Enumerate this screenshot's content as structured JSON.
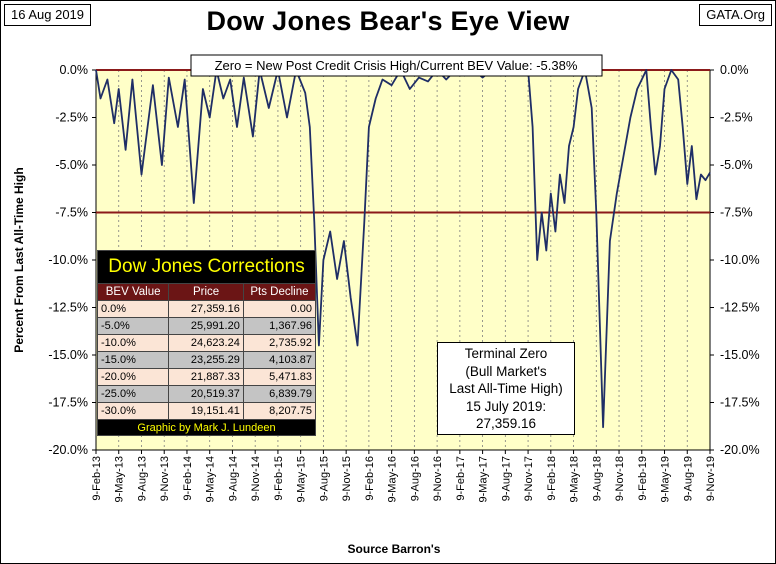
{
  "header": {
    "date": "16 Aug 2019",
    "site": "GATA.Org",
    "title": "Dow Jones Bear's Eye View"
  },
  "chart_data": {
    "type": "line",
    "title": "Dow Jones Bear's Eye View",
    "subtitle": "Zero = New Post Credit Crisis High/Current BEV Value:  -5.38%",
    "ylabel": "Percent From Last All-Time High",
    "xlabel": "Source Barron's",
    "ylim": [
      -20,
      0
    ],
    "yticks": [
      0,
      -2.5,
      -5,
      -7.5,
      -10,
      -12.5,
      -15,
      -17.5,
      -20
    ],
    "ytick_labels": [
      "0.0%",
      "-2.5%",
      "-5.0%",
      "-7.5%",
      "-10.0%",
      "-12.5%",
      "-15.0%",
      "-17.5%",
      "-20.0%"
    ],
    "xticks": [
      "9-Feb-13",
      "9-May-13",
      "9-Aug-13",
      "9-Nov-13",
      "9-Feb-14",
      "9-May-14",
      "9-Aug-14",
      "9-Nov-14",
      "9-Feb-15",
      "9-May-15",
      "9-Aug-15",
      "9-Nov-15",
      "9-Feb-16",
      "9-May-16",
      "9-Aug-16",
      "9-Nov-16",
      "9-Feb-17",
      "9-May-17",
      "9-Aug-17",
      "9-Nov-17",
      "9-Feb-18",
      "9-May-18",
      "9-Aug-18",
      "9-Nov-18",
      "9-Feb-19",
      "9-May-19",
      "9-Aug-19",
      "9-Nov-19"
    ],
    "reference_lines": [
      0,
      -7.5
    ],
    "series": [
      {
        "name": "Dow Jones BEV",
        "x": [
          0,
          0.2,
          0.5,
          0.8,
          1.0,
          1.3,
          1.6,
          2.0,
          2.5,
          2.9,
          3.2,
          3.6,
          3.9,
          4.3,
          4.7,
          5.0,
          5.3,
          5.6,
          5.9,
          6.2,
          6.5,
          6.9,
          7.2,
          7.6,
          8.0,
          8.4,
          8.8,
          9.2,
          9.4,
          9.6,
          9.8,
          10.0,
          10.3,
          10.6,
          10.9,
          11.2,
          11.5,
          11.8,
          12.0,
          12.3,
          12.6,
          13.0,
          13.4,
          13.8,
          14.2,
          14.6,
          15.0,
          15.4,
          15.8,
          16.2,
          16.6,
          17.0,
          17.4,
          17.8,
          18.2,
          18.6,
          19.0,
          19.2,
          19.4,
          19.6,
          19.8,
          20.0,
          20.2,
          20.4,
          20.6,
          20.8,
          21.0,
          21.2,
          21.5,
          21.8,
          22.0,
          22.3,
          22.6,
          22.9,
          23.2,
          23.5,
          23.8,
          24.0,
          24.2,
          24.4,
          24.6,
          24.8,
          25.0,
          25.3,
          25.6,
          25.8,
          26.0,
          26.2,
          26.4,
          26.6,
          26.8,
          27.0
        ],
        "values": [
          0,
          -1.5,
          -0.5,
          -2.8,
          -1.0,
          -4.2,
          -0.5,
          -5.5,
          -0.8,
          -5.0,
          -0.4,
          -3.0,
          -0.5,
          -7.0,
          -1.0,
          -2.5,
          0,
          -1.5,
          -0.5,
          -3.0,
          -0.4,
          -3.5,
          0,
          -2.0,
          0,
          -2.5,
          0,
          -1.2,
          -3.0,
          -8.0,
          -14.5,
          -10.0,
          -8.5,
          -11.0,
          -9.0,
          -12.0,
          -14.5,
          -8.0,
          -3.0,
          -1.5,
          -0.5,
          -0.8,
          0,
          -1.0,
          -0.4,
          -0.6,
          0,
          -0.5,
          0,
          -0.3,
          0,
          -0.4,
          0,
          -0.3,
          0,
          -0.2,
          0,
          -3.0,
          -10.0,
          -7.5,
          -9.5,
          -6.5,
          -8.5,
          -5.5,
          -7.0,
          -4.0,
          -3.0,
          -1.0,
          0,
          -2.0,
          -7.5,
          -18.8,
          -9.0,
          -6.5,
          -4.5,
          -2.5,
          -1.0,
          -0.5,
          0,
          -3.0,
          -5.5,
          -4.0,
          -1.0,
          0,
          -0.5,
          -3.0,
          -6.0,
          -4.0,
          -6.8,
          -5.5,
          -5.8,
          -5.4
        ]
      }
    ]
  },
  "corrections": {
    "title": "Dow Jones Corrections",
    "columns": [
      "BEV Value",
      "Price",
      "Pts Decline"
    ],
    "rows": [
      [
        "0.0%",
        "27,359.16",
        "0.00"
      ],
      [
        "-5.0%",
        "25,991.20",
        "1,367.96"
      ],
      [
        "-10.0%",
        "24,623.24",
        "2,735.92"
      ],
      [
        "-15.0%",
        "23,255.29",
        "4,103.87"
      ],
      [
        "-20.0%",
        "21,887.33",
        "5,471.83"
      ],
      [
        "-25.0%",
        "20,519.37",
        "6,839.79"
      ],
      [
        "-30.0%",
        "19,151.41",
        "8,207.75"
      ]
    ],
    "footer": "Graphic by Mark J. Lundeen"
  },
  "note": {
    "line1": "Terminal Zero",
    "line2": "(Bull Market's",
    "line3": "Last All-Time High)",
    "line4": "15 July 2019:",
    "line5": "27,359.16"
  },
  "colors": {
    "plot_bg": "#ffffc8",
    "series": "#1f2e66",
    "reference": "#8b1a1a",
    "grid": "#7f7f7f"
  }
}
